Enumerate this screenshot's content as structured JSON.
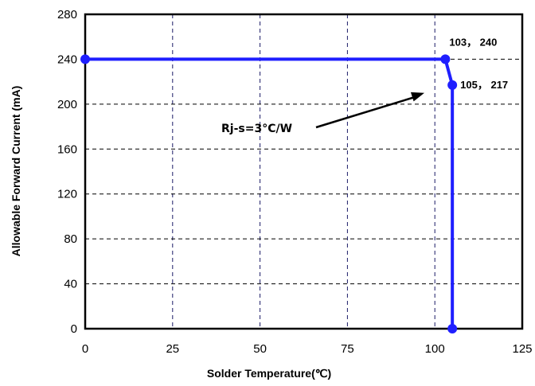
{
  "chart_data": {
    "type": "line",
    "xlabel": "Solder Temperature(℃)",
    "ylabel": "Allowable Forward Current (mA)",
    "xlim": [
      0,
      125
    ],
    "ylim": [
      0,
      280
    ],
    "x_ticks": [
      0,
      25,
      50,
      75,
      100,
      125
    ],
    "y_ticks": [
      0,
      40,
      80,
      120,
      160,
      200,
      240,
      280
    ],
    "grid": true,
    "line_color": "#1f1fff",
    "series": [
      {
        "x": [
          0,
          103,
          105,
          105
        ],
        "y": [
          240,
          240,
          217,
          0
        ]
      }
    ],
    "annotations": [
      {
        "text": "103， 240",
        "x": 103,
        "y": 240
      },
      {
        "text": "105， 217",
        "x": 105,
        "y": 217
      },
      {
        "text": "Rj-s=3°C/W",
        "arrow_to_x": 97,
        "arrow_to_y": 210
      }
    ]
  }
}
